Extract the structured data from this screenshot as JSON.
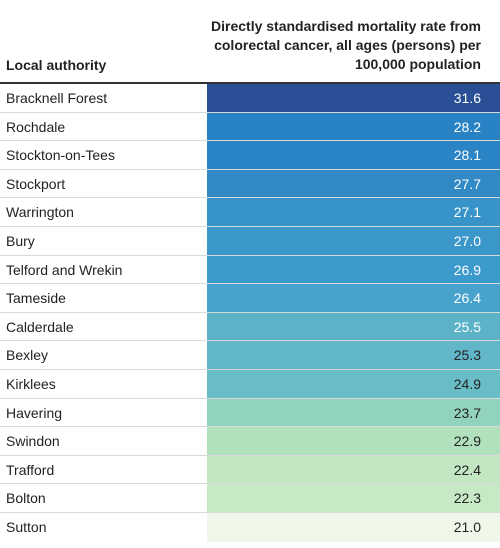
{
  "chart_data": {
    "type": "table",
    "columns": [
      "Local authority",
      "Directly standardised mortality rate from colorectal cancer, all ages (persons) per 100,000 population"
    ],
    "rows": [
      {
        "name": "Bracknell Forest",
        "value": "31.6",
        "color": "#2a4f97",
        "text_color": "#ffffff"
      },
      {
        "name": "Rochdale",
        "value": "28.2",
        "color": "#2882c4",
        "text_color": "#ffffff"
      },
      {
        "name": "Stockton-on-Tees",
        "value": "28.1",
        "color": "#2a84c6",
        "text_color": "#ffffff"
      },
      {
        "name": "Stockport",
        "value": "27.7",
        "color": "#3189c6",
        "text_color": "#ffffff"
      },
      {
        "name": "Warrington",
        "value": "27.1",
        "color": "#3893c8",
        "text_color": "#ffffff"
      },
      {
        "name": "Bury",
        "value": "27.0",
        "color": "#3b96ca",
        "text_color": "#ffffff"
      },
      {
        "name": "Telford and Wrekin",
        "value": "26.9",
        "color": "#3c99cb",
        "text_color": "#ffffff"
      },
      {
        "name": "Tameside",
        "value": "26.4",
        "color": "#47a2cc",
        "text_color": "#ffffff"
      },
      {
        "name": "Calderdale",
        "value": "25.5",
        "color": "#5cb3c8",
        "text_color": "#ffffff"
      },
      {
        "name": "Bexley",
        "value": "25.3",
        "color": "#61b7c9",
        "text_color": "#222222"
      },
      {
        "name": "Kirklees",
        "value": "24.9",
        "color": "#69bdc6",
        "text_color": "#222222"
      },
      {
        "name": "Havering",
        "value": "23.7",
        "color": "#92d3c0",
        "text_color": "#222222"
      },
      {
        "name": "Swindon",
        "value": "22.9",
        "color": "#b1e0bd",
        "text_color": "#222222"
      },
      {
        "name": "Trafford",
        "value": "22.4",
        "color": "#c3e7c3",
        "text_color": "#222222"
      },
      {
        "name": "Bolton",
        "value": "22.3",
        "color": "#c7e9c5",
        "text_color": "#222222"
      },
      {
        "name": "Sutton",
        "value": "21.0",
        "color": "#eef7e8",
        "text_color": "#222222"
      }
    ]
  }
}
